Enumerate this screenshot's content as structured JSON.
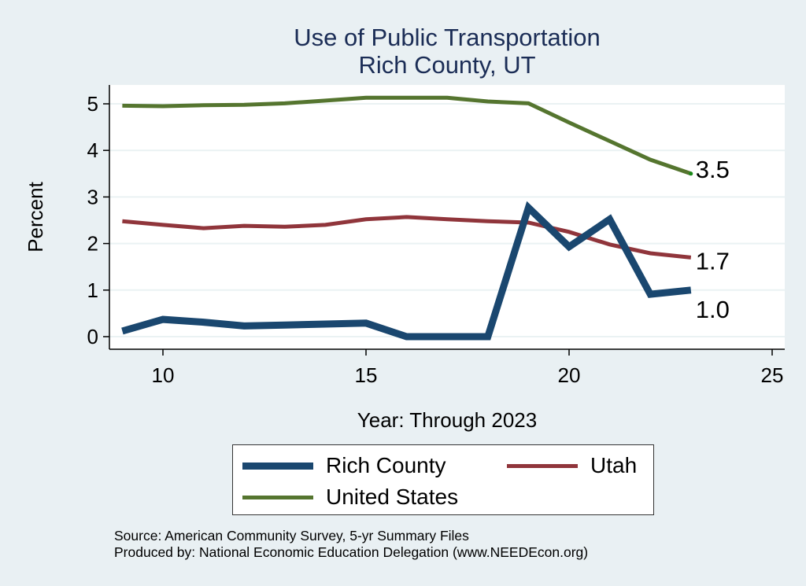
{
  "chart_data": {
    "type": "line",
    "title": "Use of Public Transportation",
    "subtitle": "Rich County, UT",
    "xlabel": "Year: Through 2023",
    "ylabel": "Percent",
    "xlim": [
      9,
      25
    ],
    "ylim": [
      0,
      5.2
    ],
    "xticks": [
      10,
      15,
      20,
      25
    ],
    "yticks": [
      0,
      1,
      2,
      3,
      4,
      5
    ],
    "grid": true,
    "legend_position": "bottom",
    "x": [
      9,
      10,
      11,
      12,
      13,
      14,
      15,
      16,
      17,
      18,
      19,
      20,
      21,
      22,
      23
    ],
    "series": [
      {
        "name": "Rich County",
        "color": "#1a476f",
        "values": [
          0.12,
          0.37,
          0.31,
          0.23,
          0.25,
          0.27,
          0.29,
          0.0,
          0.0,
          0.0,
          2.77,
          1.93,
          2.52,
          0.91,
          1.0
        ],
        "end_label": "1.0"
      },
      {
        "name": "Utah",
        "color": "#90353b",
        "values": [
          2.48,
          2.4,
          2.33,
          2.38,
          2.36,
          2.4,
          2.52,
          2.57,
          2.52,
          2.48,
          2.45,
          2.25,
          1.98,
          1.79,
          1.7
        ],
        "end_label": "1.7"
      },
      {
        "name": "United States",
        "color": "#55752f",
        "values": [
          4.96,
          4.95,
          4.97,
          4.98,
          5.01,
          5.07,
          5.13,
          5.13,
          5.13,
          5.05,
          5.01,
          4.6,
          4.2,
          3.8,
          3.5
        ],
        "end_label": "3.5"
      }
    ]
  },
  "legend": {
    "items": [
      {
        "label": "Rich County",
        "color": "#1a476f"
      },
      {
        "label": "Utah",
        "color": "#90353b"
      },
      {
        "label": "United States",
        "color": "#55752f"
      }
    ]
  },
  "footer": {
    "source": "Source: American Community Survey, 5-yr Summary Files",
    "produced_by": "Produced by: National Economic Education Delegation (www.NEEDEcon.org)"
  }
}
